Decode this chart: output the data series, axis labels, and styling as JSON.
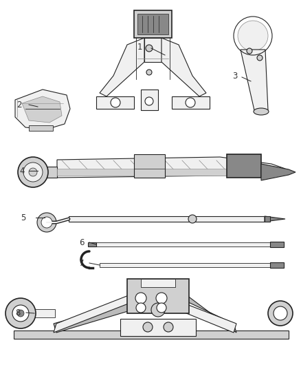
{
  "bg_color": "#ffffff",
  "line_color": "#444444",
  "dark_color": "#222222",
  "light_gray": "#bbbbbb",
  "mid_gray": "#888888",
  "fill_light": "#f0f0f0",
  "fill_mid": "#d0d0d0",
  "fill_dark": "#888888",
  "label_color": "#333333",
  "figsize": [
    4.38,
    5.33
  ],
  "dpi": 100
}
